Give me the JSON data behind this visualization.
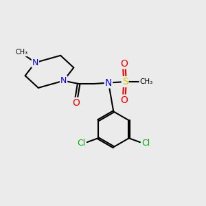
{
  "background_color": "#ebebeb",
  "atom_colors": {
    "C": "#000000",
    "N": "#0000ee",
    "O": "#ee0000",
    "S": "#cccc00",
    "Cl": "#00aa00"
  },
  "bond_color": "#000000",
  "bond_width": 1.5,
  "figsize": [
    3.0,
    3.0
  ],
  "dpi": 100,
  "xlim": [
    0,
    10
  ],
  "ylim": [
    0,
    10
  ]
}
